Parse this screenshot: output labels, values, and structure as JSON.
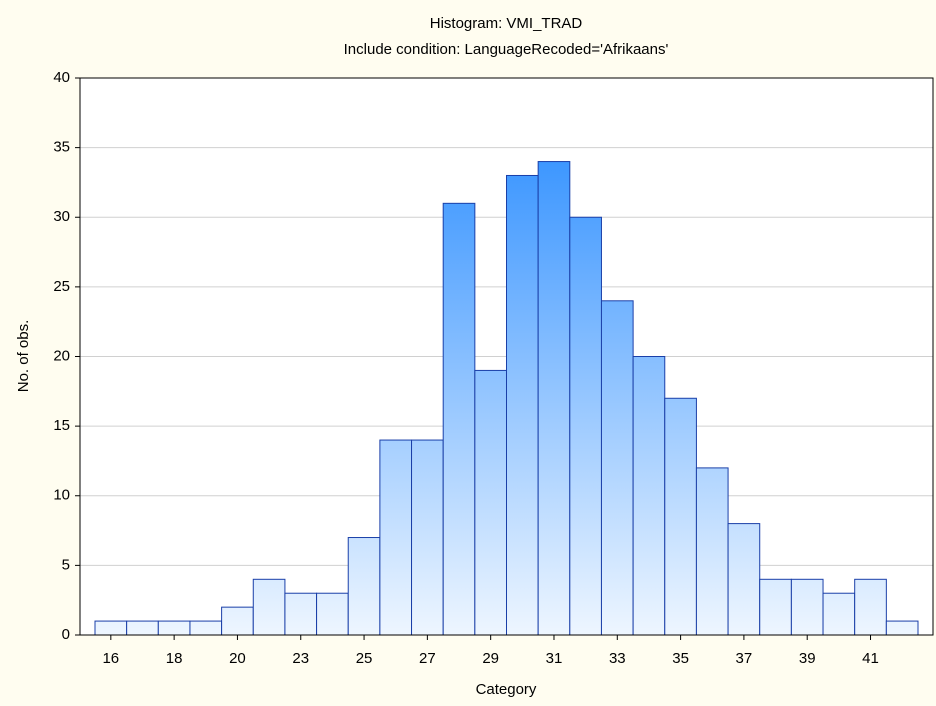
{
  "chart_data": {
    "type": "bar",
    "title": "Histogram: VMI_TRAD",
    "subtitle": "Include condition: LanguageRecoded='Afrikaans'",
    "x_label": "Category",
    "y_label": "No. of obs.",
    "categories": [
      "16",
      null,
      "18",
      null,
      "20",
      null,
      "23",
      null,
      "25",
      null,
      "27",
      null,
      "29",
      null,
      "31",
      null,
      "33",
      null,
      "35",
      null,
      "37",
      null,
      "39",
      null,
      "41",
      null
    ],
    "values": [
      1,
      1,
      1,
      1,
      2,
      4,
      3,
      3,
      7,
      14,
      14,
      31,
      19,
      33,
      34,
      30,
      24,
      20,
      17,
      12,
      8,
      4,
      4,
      3,
      4,
      1
    ],
    "color": "#1e86ff",
    "ylim": [
      0,
      40
    ],
    "yticks": [
      0,
      5,
      10,
      15,
      20,
      25,
      30,
      35,
      40
    ],
    "grid": true
  }
}
